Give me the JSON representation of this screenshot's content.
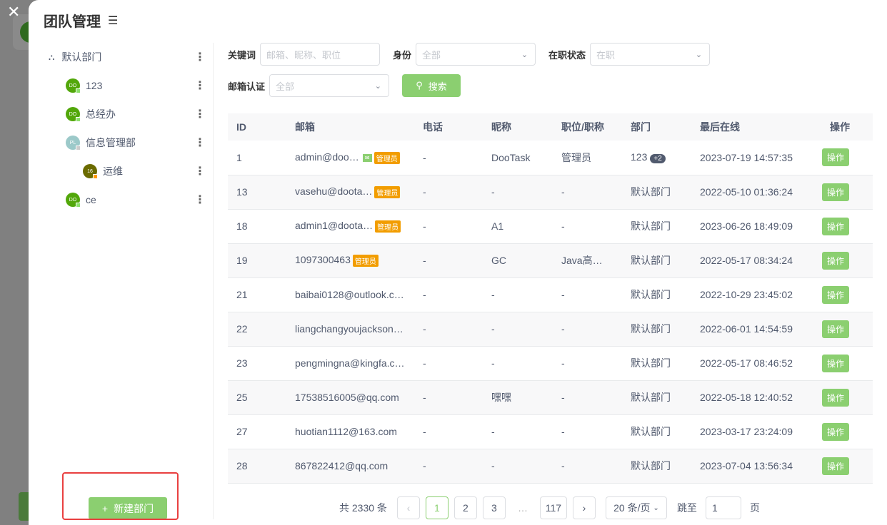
{
  "title": "团队管理",
  "tree": [
    {
      "label": "默认部门",
      "icon": "org-icon"
    },
    {
      "label": "123",
      "avatar": "DO"
    },
    {
      "label": "总经办",
      "avatar": "DO"
    },
    {
      "label": "信息管理部",
      "avatar": "PL"
    },
    {
      "label": "运维",
      "avatar": "16"
    },
    {
      "label": "ce",
      "avatar": "DO"
    }
  ],
  "new_dept": "新建部门",
  "filters": {
    "keyword_label": "关键词",
    "keyword_placeholder": "邮箱、昵称、职位",
    "identity_label": "身份",
    "identity_value": "全部",
    "status_label": "在职状态",
    "status_value": "在职",
    "email_label": "邮箱认证",
    "email_value": "全部",
    "search": "搜索"
  },
  "table": {
    "headers": [
      "ID",
      "邮箱",
      "电话",
      "昵称",
      "职位/职称",
      "部门",
      "最后在线",
      "操作"
    ],
    "admin_tag": "管理员",
    "rows": [
      {
        "id": "1",
        "email": "admin@doo…",
        "verified": true,
        "admin": true,
        "phone": "-",
        "nick": "DooTask",
        "job": "管理员",
        "dept": "123",
        "more": "+2",
        "last": "2023-07-19 14:57:35",
        "op": "操作"
      },
      {
        "id": "13",
        "email": "vasehu@doota…",
        "admin": true,
        "phone": "-",
        "nick": "-",
        "job": "-",
        "dept": "默认部门",
        "last": "2022-05-10 01:36:24",
        "op": "操作"
      },
      {
        "id": "18",
        "email": "admin1@doota…",
        "admin": true,
        "phone": "-",
        "nick": "A1",
        "job": "-",
        "dept": "默认部门",
        "last": "2023-06-26 18:49:09",
        "op": "操作"
      },
      {
        "id": "19",
        "email": "1097300463",
        "admin": true,
        "phone": "-",
        "nick": "GC",
        "job": "Java高…",
        "dept": "默认部门",
        "last": "2022-05-17 08:34:24",
        "op": "操作"
      },
      {
        "id": "21",
        "email": "baibai0128@outlook.c…",
        "phone": "-",
        "nick": "-",
        "job": "-",
        "dept": "默认部门",
        "last": "2022-10-29 23:45:02",
        "op": "操作"
      },
      {
        "id": "22",
        "email": "liangchangyoujackson…",
        "phone": "-",
        "nick": "-",
        "job": "-",
        "dept": "默认部门",
        "last": "2022-06-01 14:54:59",
        "op": "操作"
      },
      {
        "id": "23",
        "email": "pengmingna@kingfa.c…",
        "phone": "-",
        "nick": "-",
        "job": "-",
        "dept": "默认部门",
        "last": "2022-05-17 08:46:52",
        "op": "操作"
      },
      {
        "id": "25",
        "email": "17538516005@qq.com",
        "phone": "-",
        "nick": "嘿嘿",
        "job": "-",
        "dept": "默认部门",
        "last": "2022-05-18 12:40:52",
        "op": "操作"
      },
      {
        "id": "27",
        "email": "huotian1112@163.com",
        "phone": "-",
        "nick": "-",
        "job": "-",
        "dept": "默认部门",
        "last": "2023-03-17 23:24:09",
        "op": "操作"
      },
      {
        "id": "28",
        "email": "867822412@qq.com",
        "phone": "-",
        "nick": "-",
        "job": "-",
        "dept": "默认部门",
        "last": "2023-07-04 13:56:34",
        "op": "操作"
      }
    ]
  },
  "pager": {
    "total": "共 2330 条",
    "pages": [
      "1",
      "2",
      "3",
      "…",
      "117"
    ],
    "current": "1",
    "page_size": "20 条/页",
    "jump_label": "跳至",
    "jump_value": "1",
    "page_unit": "页"
  },
  "colors": {
    "accent": "#8bcf70",
    "admin_tag": "#f29d00",
    "highlight": "#e94040"
  }
}
